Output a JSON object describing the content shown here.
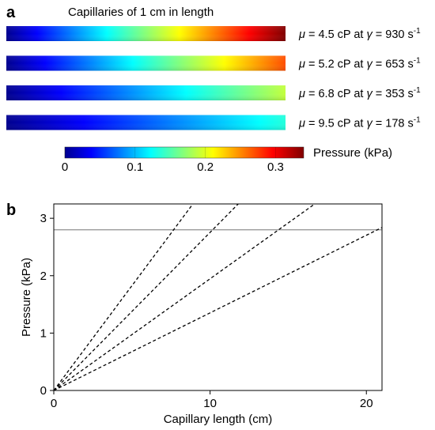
{
  "panel_a": {
    "label": "a",
    "title": "Capillaries of 1 cm in length",
    "colorbar": {
      "label": "Pressure (kPa)",
      "ticks": [
        "0",
        "0.1",
        "0.2",
        "0.3"
      ],
      "range": [
        0,
        0.34
      ]
    },
    "capillaries": [
      {
        "label": "μ = 4.5 cP at γ = 930 s-1",
        "max_pressure": 0.34
      },
      {
        "label": "μ = 5.2 cP at γ = 653 s-1",
        "max_pressure": 0.27
      },
      {
        "label": "μ = 6.8 cP at γ = 353 s-1",
        "max_pressure": 0.19
      },
      {
        "label": "μ = 9.5 cP at γ = 178 s-1",
        "max_pressure": 0.135
      }
    ]
  },
  "panel_b": {
    "label": "b"
  },
  "colors": {
    "line": "#000000",
    "threshold": "#9a9a9a",
    "axis": "#000000"
  },
  "chart_data": {
    "type": "line",
    "title": "",
    "xlabel": "Capillary length (cm)",
    "ylabel": "Pressure (kPa)",
    "xlim": [
      0,
      21
    ],
    "ylim": [
      0,
      3.25
    ],
    "xticks": [
      0,
      10,
      20
    ],
    "yticks": [
      0,
      1,
      2,
      3
    ],
    "grid": false,
    "reference_line": {
      "y": 2.8,
      "style": "solid",
      "color": "#9a9a9a"
    },
    "series": [
      {
        "x": [
          0,
          8.9
        ],
        "y": [
          0,
          3.25
        ],
        "style": "dashed"
      },
      {
        "x": [
          0,
          11.8
        ],
        "y": [
          0,
          3.25
        ],
        "style": "dashed"
      },
      {
        "x": [
          0,
          16.7
        ],
        "y": [
          0,
          3.25
        ],
        "style": "dashed"
      },
      {
        "x": [
          0,
          21
        ],
        "y": [
          0,
          2.84
        ],
        "style": "dashed"
      }
    ]
  }
}
